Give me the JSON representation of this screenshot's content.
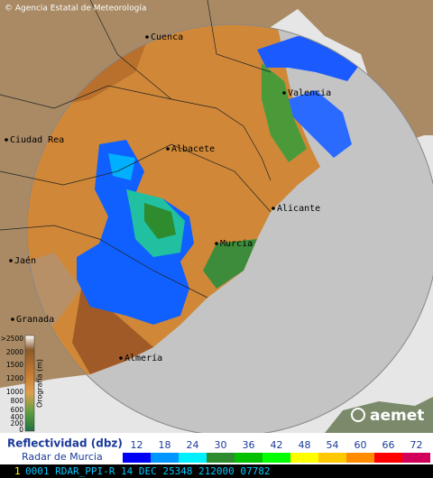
{
  "header": {
    "copyright": "© Agencia Estatal de Meteorología"
  },
  "cities": [
    "Cuenca",
    "Valencia",
    "Ciudad Rea",
    "Albacete",
    "Alicante",
    "Murcia",
    "Jaén",
    "Granada",
    "Almería"
  ],
  "orography": {
    "title": "Orografía (m)",
    "labels": [
      ">2500",
      "2000",
      "1500",
      "1200",
      "1000",
      "800",
      "600",
      "400",
      "200",
      "0"
    ]
  },
  "logo": "aemet",
  "legend": {
    "title": "Reflectividad (dbz)",
    "subtitle": "Radar de Murcia",
    "ticks": [
      12,
      18,
      24,
      30,
      36,
      42,
      48,
      54,
      60,
      66,
      72
    ],
    "colors": [
      "#0000f5",
      "#0096ff",
      "#00f0ff",
      "#2e8b2e",
      "#00c000",
      "#00ff00",
      "#ffff00",
      "#ffc800",
      "#ff8c00",
      "#ff0000",
      "#d2005a"
    ]
  },
  "status": {
    "index": "1",
    "text": "0001 RDAR_PPI-R   14 DEC 25348 212000 07782"
  }
}
